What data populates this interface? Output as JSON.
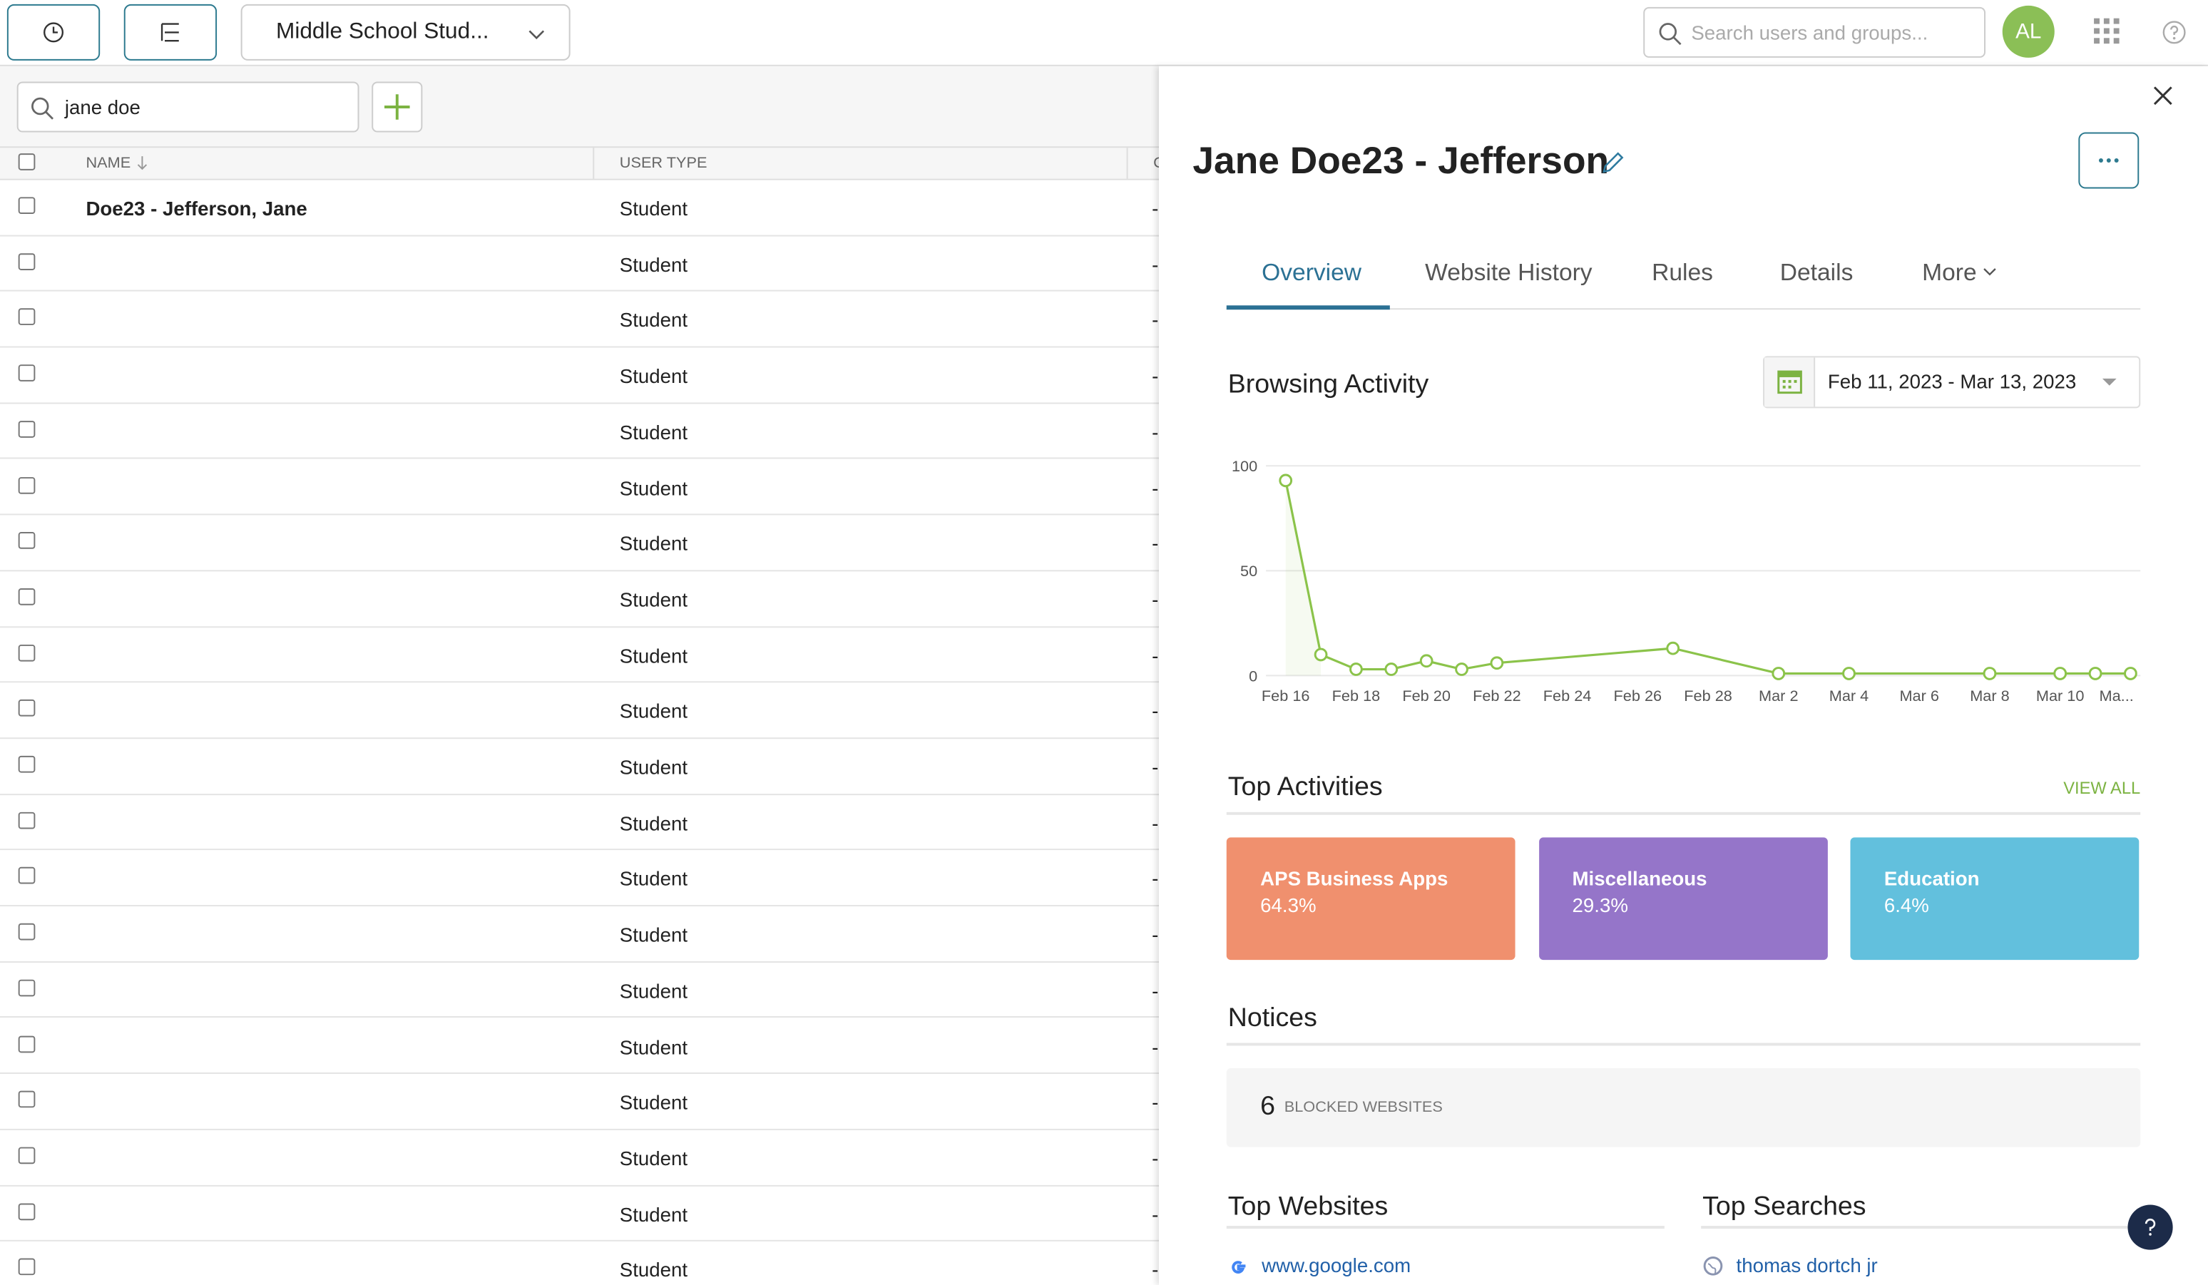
{
  "toolbar": {
    "group_select": "Middle School Stud...",
    "search_placeholder": "Search users and groups...",
    "avatar": "AL"
  },
  "user_list": {
    "search": "jane doe",
    "columns": [
      "NAME",
      "USER TYPE",
      "C"
    ],
    "rows": [
      {
        "name": "Doe23 - Jefferson, Jane",
        "user_type": "Student",
        "extra": "-"
      },
      {
        "user_type": "Student",
        "extra": "-"
      },
      {
        "user_type": "Student",
        "extra": "-"
      },
      {
        "user_type": "Student",
        "extra": "-"
      },
      {
        "user_type": "Student",
        "extra": "-"
      },
      {
        "user_type": "Student",
        "extra": "-"
      },
      {
        "user_type": "Student",
        "extra": "-"
      },
      {
        "user_type": "Student",
        "extra": "-"
      },
      {
        "user_type": "Student",
        "extra": "-"
      },
      {
        "user_type": "Student",
        "extra": "-"
      },
      {
        "user_type": "Student",
        "extra": "-"
      },
      {
        "user_type": "Student",
        "extra": "-"
      },
      {
        "user_type": "Student",
        "extra": "-"
      },
      {
        "user_type": "Student",
        "extra": "-"
      },
      {
        "user_type": "Student",
        "extra": "-"
      },
      {
        "user_type": "Student",
        "extra": "-"
      },
      {
        "user_type": "Student",
        "extra": "-"
      },
      {
        "user_type": "Student",
        "extra": "-"
      },
      {
        "user_type": "Student",
        "extra": "-"
      },
      {
        "user_type": "Student",
        "extra": "-"
      }
    ]
  },
  "profile": {
    "title": "Jane Doe23 - Jefferson",
    "tabs": [
      "Overview",
      "Website History",
      "Rules",
      "Details",
      "More"
    ],
    "top_activities": {
      "title": "Top Activities",
      "link": "VIEW ALL",
      "cards": [
        {
          "name": "APS Business Apps",
          "share": "64.3%"
        },
        {
          "name": "Miscellaneous",
          "share": "29.3%"
        },
        {
          "name": "Education",
          "share": "6.4%"
        }
      ]
    },
    "notices": {
      "title": "Notices",
      "count": "6",
      "label": "BLOCKED WEBSITES"
    },
    "top_websites": {
      "title": "Top Websites",
      "items": [
        "www.google.com"
      ]
    },
    "top_searches": {
      "title": "Top Searches",
      "items": [
        "thomas dortch jr"
      ]
    }
  },
  "chart_data": {
    "type": "line",
    "title": "Browsing Activity",
    "date_range": "Feb 11, 2023 - Mar 13, 2023",
    "x": [
      "Feb 16",
      "Feb 17",
      "Feb 18",
      "Feb 19",
      "Feb 20",
      "Feb 21",
      "Feb 22",
      "Feb 27",
      "Mar 2",
      "Mar 4",
      "Mar 8",
      "Mar 10",
      "Mar 11",
      "Mar 12"
    ],
    "values": [
      93,
      10,
      3,
      3,
      7,
      3,
      6,
      13,
      1,
      1,
      1,
      1,
      1,
      1
    ],
    "color": "#8bc34a",
    "xlim": [
      "Feb 16",
      "Mar 12"
    ],
    "xticks": [
      "Feb 16",
      "Feb 18",
      "Feb 20",
      "Feb 22",
      "Feb 24",
      "Feb 26",
      "Feb 28",
      "Mar 2",
      "Mar 4",
      "Mar 6",
      "Mar 8",
      "Mar 10",
      {
        "value": "Mar 12",
        "label": "Ma..."
      }
    ],
    "ylim": [
      0,
      100
    ],
    "yticks": [
      0,
      50,
      100
    ],
    "grid": true
  }
}
